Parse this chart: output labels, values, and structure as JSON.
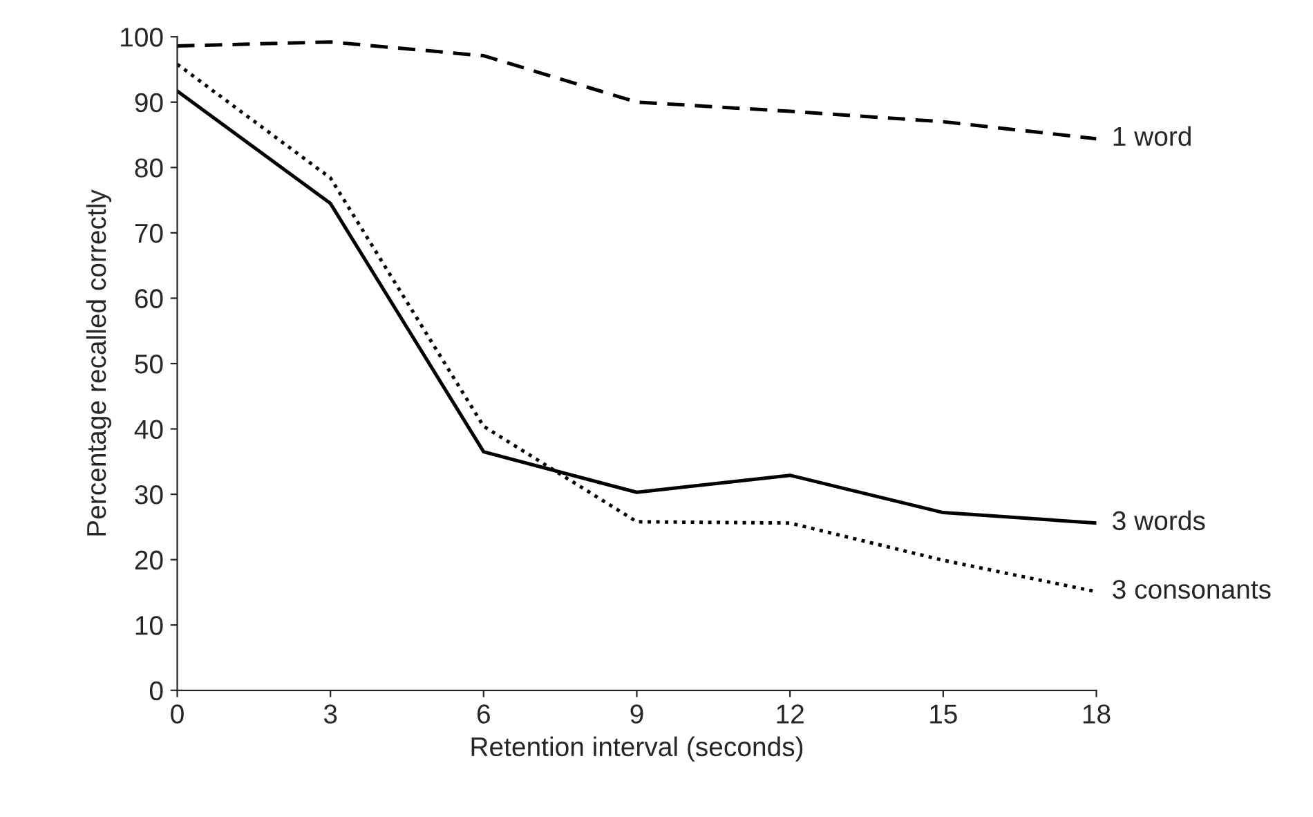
{
  "chart_data": {
    "type": "line",
    "xlabel": "Retention interval (seconds)",
    "ylabel": "Percentage recalled correctly",
    "x": [
      0,
      3,
      6,
      9,
      12,
      15,
      18
    ],
    "xlim": [
      0,
      18
    ],
    "xticks": [
      0,
      3,
      6,
      9,
      12,
      15,
      18
    ],
    "ylim": [
      0,
      100
    ],
    "yticks": [
      0,
      10,
      20,
      30,
      40,
      50,
      60,
      70,
      80,
      90,
      100
    ],
    "grid": false,
    "legend": false,
    "marker": "none",
    "series": [
      {
        "name": "1 word",
        "color": "#000000",
        "line_style": "dashed",
        "values": [
          98.6,
          99.2,
          97.1,
          90,
          88.6,
          87,
          84.4
        ]
      },
      {
        "name": "3 words",
        "color": "#000000",
        "line_style": "solid",
        "values": [
          91.7,
          74.5,
          36.5,
          30.3,
          32.9,
          27.2,
          25.6
        ]
      },
      {
        "name": "3 consonants",
        "color": "#000000",
        "line_style": "dotted",
        "values": [
          95.8,
          78.4,
          40.4,
          25.8,
          25.6,
          19.9,
          15.1
        ]
      }
    ]
  }
}
